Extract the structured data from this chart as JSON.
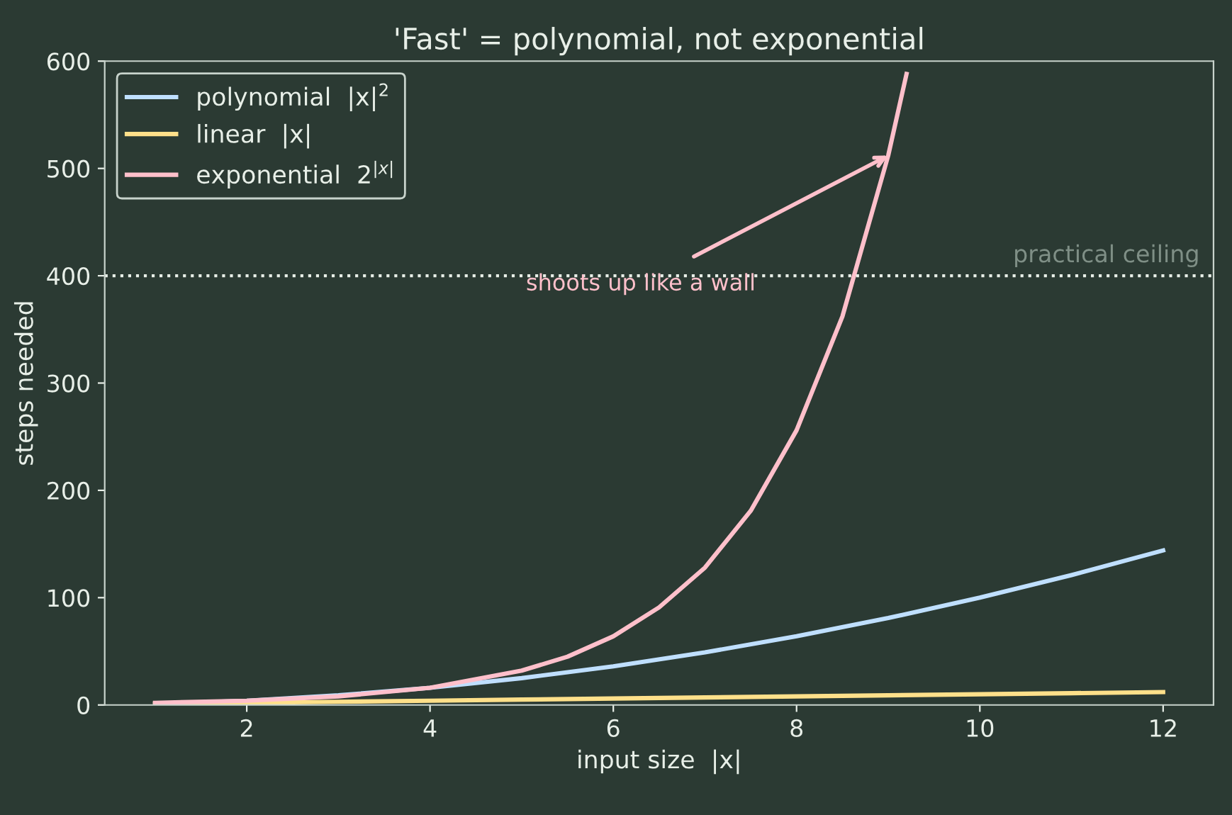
{
  "chart_data": {
    "type": "line",
    "title": "'Fast' = polynomial, not exponential",
    "xlabel": "input size  |x|",
    "ylabel": "steps needed",
    "series": [
      {
        "name": "polynomial  |x|$^{2}$",
        "color": "#bfdfff",
        "x": [
          1,
          2,
          3,
          4,
          5,
          6,
          7,
          8,
          9,
          10,
          11,
          12
        ],
        "values": [
          1,
          4,
          9,
          16,
          25,
          36,
          49,
          64,
          81,
          100,
          121,
          144
        ]
      },
      {
        "name": "linear  |x|",
        "color": "#ffe08a",
        "x": [
          1,
          2,
          3,
          4,
          5,
          6,
          7,
          8,
          9,
          10,
          11,
          12
        ],
        "values": [
          1,
          2,
          3,
          4,
          5,
          6,
          7,
          8,
          9,
          10,
          11,
          12
        ]
      },
      {
        "name": "exponential  2$^{|x|}$",
        "color": "#ffc0cb",
        "x": [
          1,
          2,
          3,
          4,
          5,
          5.5,
          6,
          6.5,
          7,
          7.5,
          8,
          8.5,
          9,
          9.2
        ],
        "values": [
          2,
          4,
          8,
          16,
          32,
          45,
          64,
          91,
          128,
          181,
          256,
          362,
          512,
          588
        ]
      }
    ],
    "xlim": [
      0.45,
      12.55
    ],
    "xticks": [
      2,
      4,
      6,
      8,
      10,
      12
    ],
    "ylim": [
      0,
      600
    ],
    "yticks": [
      0,
      100,
      200,
      300,
      400,
      500,
      600
    ],
    "ref_lines": [
      {
        "axis": "y",
        "value": 400,
        "label": "practical ceiling",
        "color": "#e8efe8",
        "line_style": "dotted"
      }
    ],
    "annotations": [
      {
        "text": "shoots up like a wall",
        "x": 9,
        "y": 512
      }
    ],
    "legend": "top left",
    "grid": false
  }
}
